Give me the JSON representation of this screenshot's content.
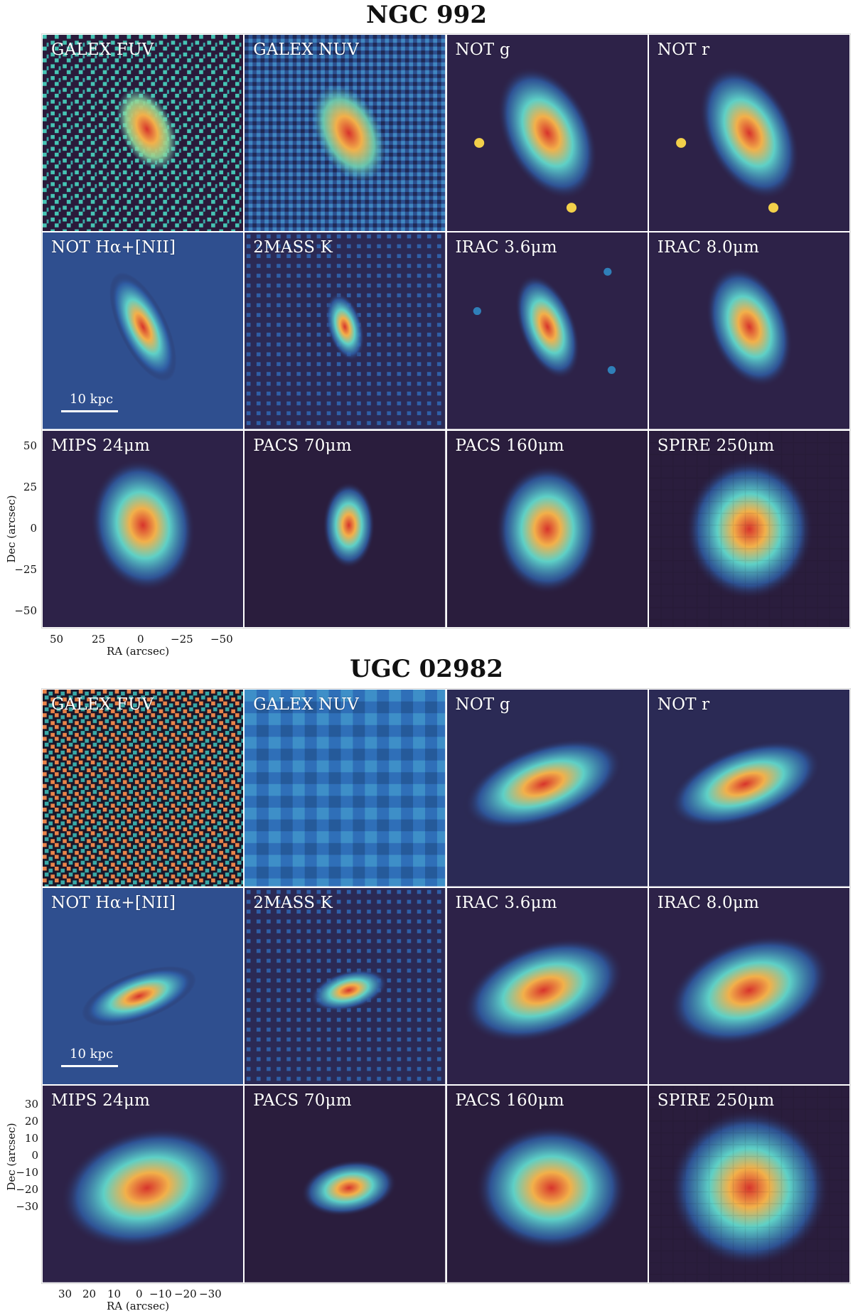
{
  "figures": [
    {
      "title": "NGC 992",
      "labels": [
        "GALEX FUV",
        "GALEX NUV",
        "NOT g",
        "NOT r",
        "NOT Hα+[NII]",
        "2MASS K",
        "IRAC 3.6μm",
        "IRAC 8.0μm",
        "MIPS 24μm",
        "PACS 70μm",
        "PACS 160μm",
        "SPIRE 250μm"
      ],
      "scale_bar": "10 kpc",
      "ra_ticks": [
        "50",
        "25",
        "0",
        "−25",
        "−50"
      ],
      "dec_ticks": [
        "50",
        "25",
        "0",
        "−25",
        "−50"
      ],
      "ra_label": "RA (arcsec)",
      "dec_label": "Dec (arcsec)"
    },
    {
      "title": "UGC 02982",
      "labels": [
        "GALEX FUV",
        "GALEX NUV",
        "NOT g",
        "NOT r",
        "NOT Hα+[NII]",
        "2MASS K",
        "IRAC 3.6μm",
        "IRAC 8.0μm",
        "MIPS 24μm",
        "PACS 70μm",
        "PACS 160μm",
        "SPIRE 250μm"
      ],
      "scale_bar": "10 kpc",
      "ra_ticks": [
        "30",
        "20",
        "10",
        "0",
        "−10",
        "−20",
        "−30"
      ],
      "dec_ticks": [
        "30",
        "20",
        "10",
        "0",
        "−10",
        "−20",
        "−30"
      ],
      "ra_label": "RA (arcsec)",
      "dec_label": "Dec (arcsec)"
    }
  ],
  "colormap": {
    "background": "#2b1d3f",
    "low": "#2f5fa8",
    "mid": "#5ed0c6",
    "high": "#f2d04a",
    "peak": "#d7342c"
  }
}
